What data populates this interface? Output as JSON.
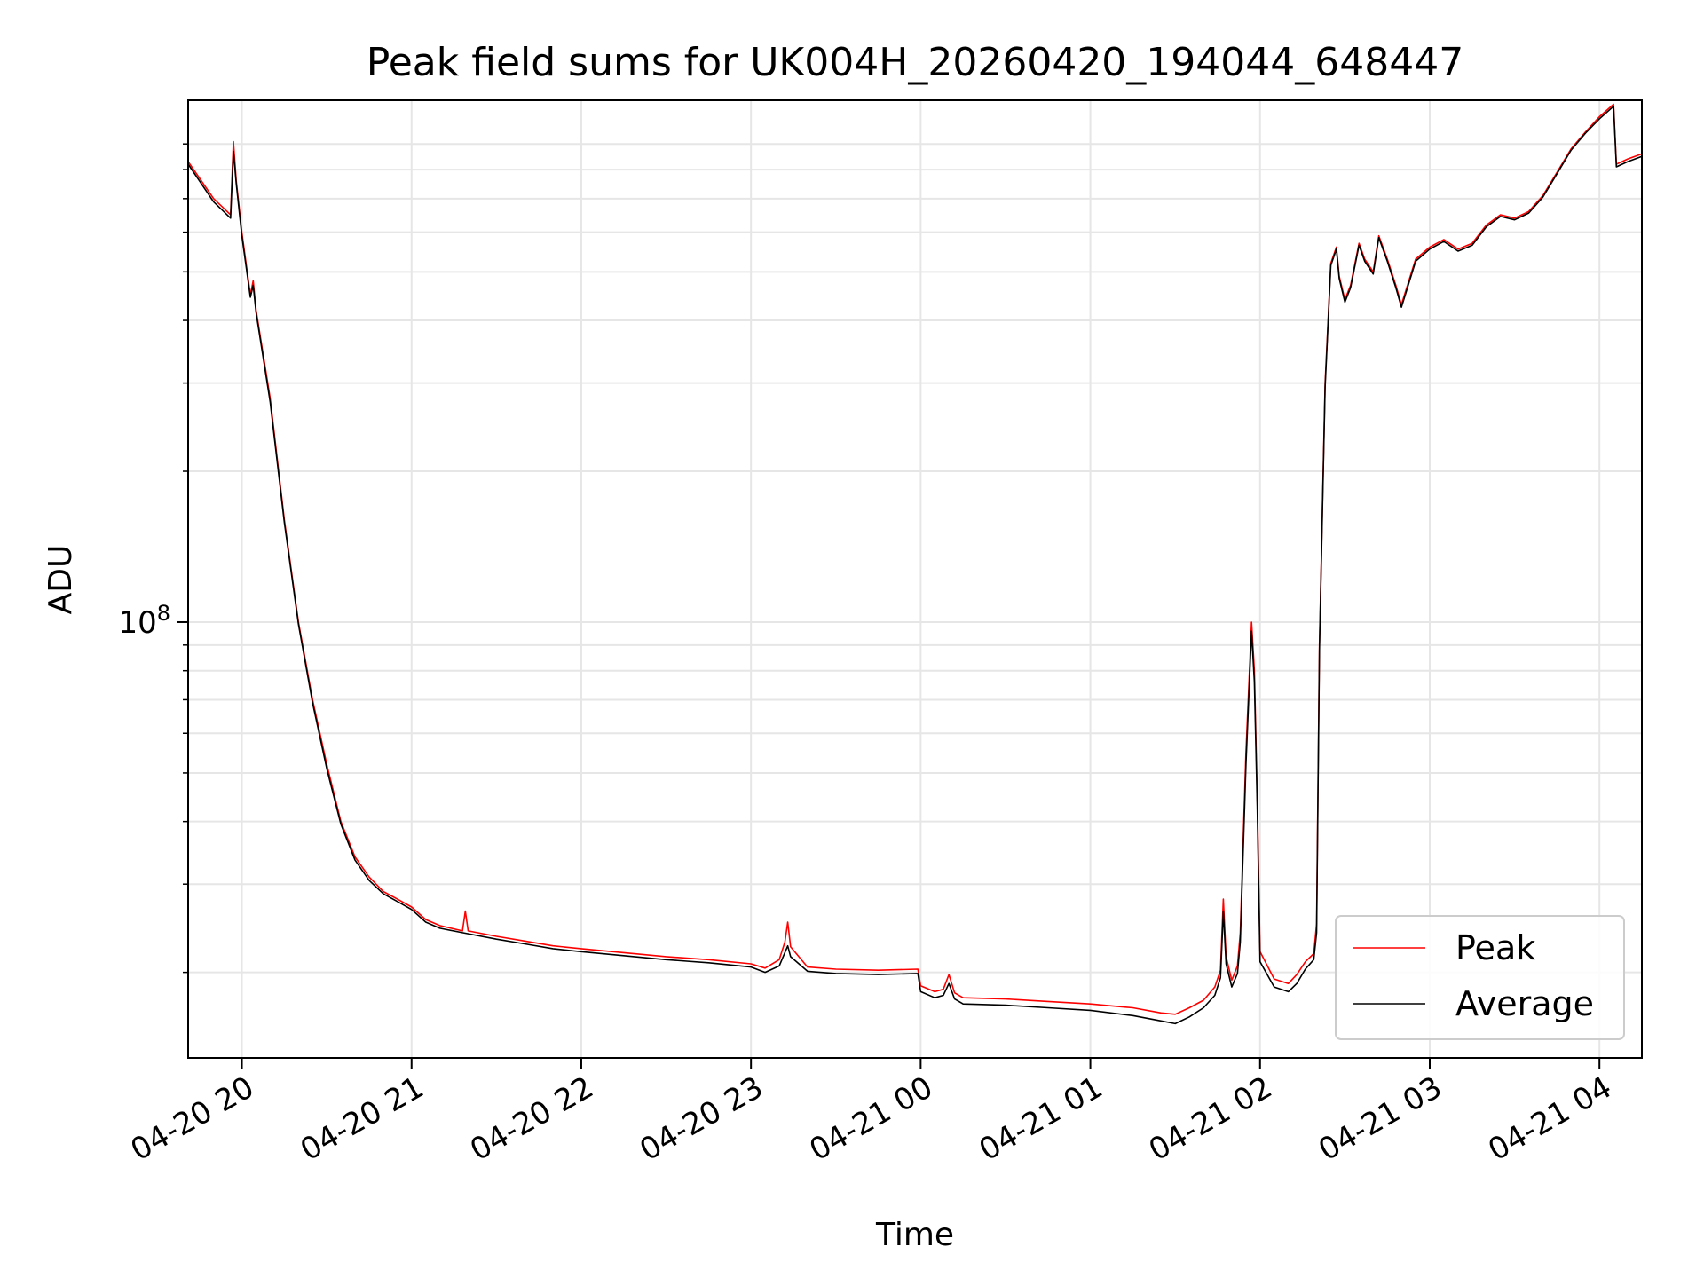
{
  "chart_data": {
    "type": "line",
    "title": "Peak field sums for UK004H_20260420_194044_648447",
    "xlabel": "Time",
    "ylabel": "ADU",
    "y_scale": "log",
    "ylim": [
      13500000,
      1100000000
    ],
    "xlim": [
      "2026-04-20 19:41",
      "2026-04-21 04:15"
    ],
    "grid": true,
    "legend_position": "lower-right",
    "x_ticks": [
      {
        "value": "2026-04-20 20:00",
        "label": "04-20 20"
      },
      {
        "value": "2026-04-20 21:00",
        "label": "04-20 21"
      },
      {
        "value": "2026-04-20 22:00",
        "label": "04-20 22"
      },
      {
        "value": "2026-04-20 23:00",
        "label": "04-20 23"
      },
      {
        "value": "2026-04-21 00:00",
        "label": "04-21 00"
      },
      {
        "value": "2026-04-21 01:00",
        "label": "04-21 01"
      },
      {
        "value": "2026-04-21 02:00",
        "label": "04-21 02"
      },
      {
        "value": "2026-04-21 03:00",
        "label": "04-21 03"
      },
      {
        "value": "2026-04-21 04:00",
        "label": "04-21 04"
      }
    ],
    "y_major_ticks": [
      {
        "value": 100000000,
        "base": "10",
        "exp": "8"
      }
    ],
    "y_minor_ticks": [
      20000000,
      30000000,
      40000000,
      50000000,
      60000000,
      70000000,
      80000000,
      90000000,
      200000000,
      300000000,
      400000000,
      500000000,
      600000000,
      700000000,
      800000000,
      900000000
    ],
    "series": [
      {
        "name": "Peak",
        "color": "#ff0000",
        "points": [
          [
            "2026-04-20 19:41",
            830000000
          ],
          [
            "2026-04-20 19:50",
            700000000
          ],
          [
            "2026-04-20 19:56",
            650000000
          ],
          [
            "2026-04-20 19:57",
            910000000
          ],
          [
            "2026-04-20 19:58",
            760000000
          ],
          [
            "2026-04-20 20:00",
            600000000
          ],
          [
            "2026-04-20 20:03",
            450000000
          ],
          [
            "2026-04-20 20:04",
            480000000
          ],
          [
            "2026-04-20 20:05",
            420000000
          ],
          [
            "2026-04-20 20:10",
            280000000
          ],
          [
            "2026-04-20 20:15",
            160000000
          ],
          [
            "2026-04-20 20:20",
            100000000
          ],
          [
            "2026-04-20 20:25",
            70000000
          ],
          [
            "2026-04-20 20:30",
            52000000
          ],
          [
            "2026-04-20 20:35",
            40000000
          ],
          [
            "2026-04-20 20:40",
            34000000
          ],
          [
            "2026-04-20 20:45",
            31000000
          ],
          [
            "2026-04-20 20:50",
            29000000
          ],
          [
            "2026-04-20 20:55",
            28000000
          ],
          [
            "2026-04-20 21:00",
            27000000
          ],
          [
            "2026-04-20 21:05",
            25500000
          ],
          [
            "2026-04-20 21:10",
            24800000
          ],
          [
            "2026-04-20 21:18",
            24200000
          ],
          [
            "2026-04-20 21:19",
            26500000
          ],
          [
            "2026-04-20 21:20",
            24200000
          ],
          [
            "2026-04-20 21:30",
            23600000
          ],
          [
            "2026-04-20 21:40",
            23100000
          ],
          [
            "2026-04-20 21:50",
            22600000
          ],
          [
            "2026-04-20 22:00",
            22300000
          ],
          [
            "2026-04-20 22:15",
            21900000
          ],
          [
            "2026-04-20 22:30",
            21500000
          ],
          [
            "2026-04-20 22:45",
            21200000
          ],
          [
            "2026-04-20 23:00",
            20800000
          ],
          [
            "2026-04-20 23:05",
            20400000
          ],
          [
            "2026-04-20 23:10",
            21200000
          ],
          [
            "2026-04-20 23:12",
            23000000
          ],
          [
            "2026-04-20 23:13",
            25200000
          ],
          [
            "2026-04-20 23:14",
            22500000
          ],
          [
            "2026-04-20 23:20",
            20500000
          ],
          [
            "2026-04-20 23:30",
            20300000
          ],
          [
            "2026-04-20 23:45",
            20200000
          ],
          [
            "2026-04-20 23:59",
            20300000
          ],
          [
            "2026-04-21 00:00",
            18800000
          ],
          [
            "2026-04-21 00:05",
            18300000
          ],
          [
            "2026-04-21 00:08",
            18500000
          ],
          [
            "2026-04-21 00:10",
            19800000
          ],
          [
            "2026-04-21 00:12",
            18200000
          ],
          [
            "2026-04-21 00:15",
            17800000
          ],
          [
            "2026-04-21 00:30",
            17700000
          ],
          [
            "2026-04-21 00:45",
            17500000
          ],
          [
            "2026-04-21 01:00",
            17300000
          ],
          [
            "2026-04-21 01:15",
            17000000
          ],
          [
            "2026-04-21 01:25",
            16600000
          ],
          [
            "2026-04-21 01:30",
            16500000
          ],
          [
            "2026-04-21 01:35",
            17000000
          ],
          [
            "2026-04-21 01:40",
            17600000
          ],
          [
            "2026-04-21 01:44",
            18700000
          ],
          [
            "2026-04-21 01:46",
            20200000
          ],
          [
            "2026-04-21 01:47",
            28000000
          ],
          [
            "2026-04-21 01:48",
            21500000
          ],
          [
            "2026-04-21 01:50",
            19300000
          ],
          [
            "2026-04-21 01:52",
            20600000
          ],
          [
            "2026-04-21 01:53",
            24000000
          ],
          [
            "2026-04-21 01:55",
            55000000
          ],
          [
            "2026-04-21 01:57",
            100000000
          ],
          [
            "2026-04-21 01:58",
            80000000
          ],
          [
            "2026-04-21 01:59",
            45000000
          ],
          [
            "2026-04-21 02:00",
            22000000
          ],
          [
            "2026-04-21 02:05",
            19400000
          ],
          [
            "2026-04-21 02:10",
            19000000
          ],
          [
            "2026-04-21 02:13",
            19800000
          ],
          [
            "2026-04-21 02:16",
            21000000
          ],
          [
            "2026-04-21 02:19",
            21800000
          ],
          [
            "2026-04-21 02:20",
            25000000
          ],
          [
            "2026-04-21 02:21",
            90000000
          ],
          [
            "2026-04-21 02:23",
            300000000
          ],
          [
            "2026-04-21 02:25",
            520000000
          ],
          [
            "2026-04-21 02:27",
            560000000
          ],
          [
            "2026-04-21 02:28",
            490000000
          ],
          [
            "2026-04-21 02:30",
            440000000
          ],
          [
            "2026-04-21 02:32",
            470000000
          ],
          [
            "2026-04-21 02:35",
            570000000
          ],
          [
            "2026-04-21 02:37",
            530000000
          ],
          [
            "2026-04-21 02:40",
            500000000
          ],
          [
            "2026-04-21 02:42",
            590000000
          ],
          [
            "2026-04-21 02:45",
            530000000
          ],
          [
            "2026-04-21 02:48",
            470000000
          ],
          [
            "2026-04-21 02:50",
            430000000
          ],
          [
            "2026-04-21 02:55",
            530000000
          ],
          [
            "2026-04-21 03:00",
            560000000
          ],
          [
            "2026-04-21 03:05",
            580000000
          ],
          [
            "2026-04-21 03:10",
            555000000
          ],
          [
            "2026-04-21 03:15",
            570000000
          ],
          [
            "2026-04-21 03:20",
            620000000
          ],
          [
            "2026-04-21 03:25",
            650000000
          ],
          [
            "2026-04-21 03:30",
            640000000
          ],
          [
            "2026-04-21 03:35",
            660000000
          ],
          [
            "2026-04-21 03:40",
            710000000
          ],
          [
            "2026-04-21 03:45",
            790000000
          ],
          [
            "2026-04-21 03:50",
            880000000
          ],
          [
            "2026-04-21 03:55",
            950000000
          ],
          [
            "2026-04-21 04:00",
            1020000000
          ],
          [
            "2026-04-21 04:05",
            1080000000
          ],
          [
            "2026-04-21 04:06",
            820000000
          ],
          [
            "2026-04-21 04:10",
            840000000
          ],
          [
            "2026-04-21 04:15",
            860000000
          ]
        ]
      },
      {
        "name": "Average",
        "color": "#000000",
        "points": [
          [
            "2026-04-20 19:41",
            820000000
          ],
          [
            "2026-04-20 19:50",
            690000000
          ],
          [
            "2026-04-20 19:56",
            640000000
          ],
          [
            "2026-04-20 19:57",
            870000000
          ],
          [
            "2026-04-20 19:58",
            750000000
          ],
          [
            "2026-04-20 20:00",
            590000000
          ],
          [
            "2026-04-20 20:03",
            445000000
          ],
          [
            "2026-04-20 20:04",
            470000000
          ],
          [
            "2026-04-20 20:05",
            415000000
          ],
          [
            "2026-04-20 20:10",
            275000000
          ],
          [
            "2026-04-20 20:15",
            158000000
          ],
          [
            "2026-04-20 20:20",
            99000000
          ],
          [
            "2026-04-20 20:25",
            69000000
          ],
          [
            "2026-04-20 20:30",
            51000000
          ],
          [
            "2026-04-20 20:35",
            39500000
          ],
          [
            "2026-04-20 20:40",
            33500000
          ],
          [
            "2026-04-20 20:45",
            30500000
          ],
          [
            "2026-04-20 20:50",
            28700000
          ],
          [
            "2026-04-20 20:55",
            27700000
          ],
          [
            "2026-04-20 21:00",
            26700000
          ],
          [
            "2026-04-20 21:05",
            25200000
          ],
          [
            "2026-04-20 21:10",
            24500000
          ],
          [
            "2026-04-20 21:18",
            24000000
          ],
          [
            "2026-04-20 21:30",
            23300000
          ],
          [
            "2026-04-20 21:40",
            22800000
          ],
          [
            "2026-04-20 21:50",
            22300000
          ],
          [
            "2026-04-20 22:00",
            22000000
          ],
          [
            "2026-04-20 22:15",
            21600000
          ],
          [
            "2026-04-20 22:30",
            21200000
          ],
          [
            "2026-04-20 22:45",
            20900000
          ],
          [
            "2026-04-20 23:00",
            20500000
          ],
          [
            "2026-04-20 23:05",
            20000000
          ],
          [
            "2026-04-20 23:10",
            20600000
          ],
          [
            "2026-04-20 23:13",
            22600000
          ],
          [
            "2026-04-20 23:14",
            21500000
          ],
          [
            "2026-04-20 23:20",
            20100000
          ],
          [
            "2026-04-20 23:30",
            19900000
          ],
          [
            "2026-04-20 23:45",
            19800000
          ],
          [
            "2026-04-20 23:59",
            19900000
          ],
          [
            "2026-04-21 00:00",
            18300000
          ],
          [
            "2026-04-21 00:05",
            17800000
          ],
          [
            "2026-04-21 00:08",
            18000000
          ],
          [
            "2026-04-21 00:10",
            19000000
          ],
          [
            "2026-04-21 00:12",
            17700000
          ],
          [
            "2026-04-21 00:15",
            17300000
          ],
          [
            "2026-04-21 00:30",
            17200000
          ],
          [
            "2026-04-21 00:45",
            17000000
          ],
          [
            "2026-04-21 01:00",
            16800000
          ],
          [
            "2026-04-21 01:15",
            16400000
          ],
          [
            "2026-04-21 01:25",
            16000000
          ],
          [
            "2026-04-21 01:30",
            15800000
          ],
          [
            "2026-04-21 01:35",
            16300000
          ],
          [
            "2026-04-21 01:40",
            17000000
          ],
          [
            "2026-04-21 01:44",
            18000000
          ],
          [
            "2026-04-21 01:46",
            19500000
          ],
          [
            "2026-04-21 01:47",
            26500000
          ],
          [
            "2026-04-21 01:48",
            20800000
          ],
          [
            "2026-04-21 01:50",
            18700000
          ],
          [
            "2026-04-21 01:52",
            19900000
          ],
          [
            "2026-04-21 01:53",
            23000000
          ],
          [
            "2026-04-21 01:55",
            52000000
          ],
          [
            "2026-04-21 01:57",
            96000000
          ],
          [
            "2026-04-21 01:58",
            76000000
          ],
          [
            "2026-04-21 01:59",
            43000000
          ],
          [
            "2026-04-21 02:00",
            21000000
          ],
          [
            "2026-04-21 02:05",
            18700000
          ],
          [
            "2026-04-21 02:10",
            18300000
          ],
          [
            "2026-04-21 02:13",
            19000000
          ],
          [
            "2026-04-21 02:16",
            20300000
          ],
          [
            "2026-04-21 02:19",
            21200000
          ],
          [
            "2026-04-21 02:20",
            24000000
          ],
          [
            "2026-04-21 02:21",
            88000000
          ],
          [
            "2026-04-21 02:23",
            295000000
          ],
          [
            "2026-04-21 02:25",
            515000000
          ],
          [
            "2026-04-21 02:27",
            555000000
          ],
          [
            "2026-04-21 02:28",
            485000000
          ],
          [
            "2026-04-21 02:30",
            435000000
          ],
          [
            "2026-04-21 02:32",
            465000000
          ],
          [
            "2026-04-21 02:35",
            565000000
          ],
          [
            "2026-04-21 02:37",
            525000000
          ],
          [
            "2026-04-21 02:40",
            495000000
          ],
          [
            "2026-04-21 02:42",
            585000000
          ],
          [
            "2026-04-21 02:45",
            525000000
          ],
          [
            "2026-04-21 02:48",
            465000000
          ],
          [
            "2026-04-21 02:50",
            425000000
          ],
          [
            "2026-04-21 02:55",
            525000000
          ],
          [
            "2026-04-21 03:00",
            555000000
          ],
          [
            "2026-04-21 03:05",
            575000000
          ],
          [
            "2026-04-21 03:10",
            550000000
          ],
          [
            "2026-04-21 03:15",
            565000000
          ],
          [
            "2026-04-21 03:20",
            615000000
          ],
          [
            "2026-04-21 03:25",
            645000000
          ],
          [
            "2026-04-21 03:30",
            635000000
          ],
          [
            "2026-04-21 03:35",
            655000000
          ],
          [
            "2026-04-21 03:40",
            705000000
          ],
          [
            "2026-04-21 03:45",
            785000000
          ],
          [
            "2026-04-21 03:50",
            875000000
          ],
          [
            "2026-04-21 03:55",
            945000000
          ],
          [
            "2026-04-21 04:00",
            1010000000
          ],
          [
            "2026-04-21 04:05",
            1070000000
          ],
          [
            "2026-04-21 04:06",
            810000000
          ],
          [
            "2026-04-21 04:10",
            830000000
          ],
          [
            "2026-04-21 04:15",
            850000000
          ]
        ]
      }
    ]
  }
}
